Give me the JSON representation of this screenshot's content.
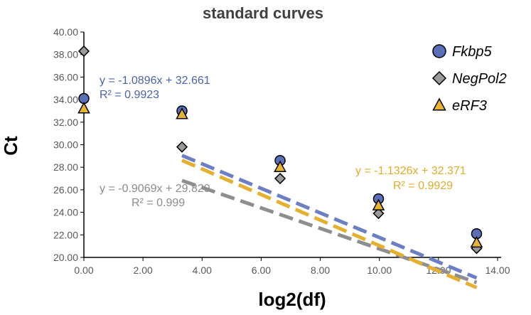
{
  "chart_data": {
    "type": "scatter",
    "title": "standard curves",
    "xlabel": "log2(df)",
    "ylabel": "Ct",
    "xlim": [
      0,
      14
    ],
    "ylim": [
      20,
      40
    ],
    "xticks": [
      "0.00",
      "2.00",
      "4.00",
      "6.00",
      "8.00",
      "10.00",
      "12.00",
      "14.00"
    ],
    "yticks": [
      "20.00",
      "22.00",
      "24.00",
      "26.00",
      "28.00",
      "30.00",
      "32.00",
      "34.00",
      "36.00",
      "38.00",
      "40.00"
    ],
    "legend_position": "top-right",
    "grid": false,
    "series": [
      {
        "name": "Fkbp5",
        "marker": "circle",
        "color": "#5b6fb8",
        "line_color": "#6d7fc4",
        "x": [
          0,
          3.32,
          6.64,
          9.97,
          13.29
        ],
        "y": [
          34.1,
          33.0,
          28.6,
          25.2,
          22.1
        ],
        "trend": {
          "slope": -1.0896,
          "intercept": 32.661,
          "x_range": [
            3.32,
            13.29
          ]
        },
        "equation": "y = -1.0896x + 32.661",
        "r2": "R² = 0.9923",
        "equation_color": "#4a64a8"
      },
      {
        "name": "NegPol2",
        "marker": "diamond",
        "color": "#9a9a9a",
        "line_color": "#8e8e8e",
        "x": [
          0,
          3.32,
          6.64,
          9.97,
          13.29
        ],
        "y": [
          38.3,
          29.8,
          27.0,
          23.9,
          20.8
        ],
        "trend": {
          "slope": -0.9069,
          "intercept": 29.829,
          "x_range": [
            3.32,
            13.29
          ]
        },
        "equation": "y = -0.9069x + 29.829",
        "r2": "R² = 0.999",
        "equation_color": "#8c8c8c"
      },
      {
        "name": "eRF3",
        "marker": "triangle",
        "color": "#e8b432",
        "line_color": "#e5b02e",
        "x": [
          0,
          3.32,
          6.64,
          9.97,
          13.29
        ],
        "y": [
          33.2,
          32.7,
          28.0,
          24.6,
          21.3
        ],
        "trend": {
          "slope": -1.1326,
          "intercept": 32.371,
          "x_range": [
            3.32,
            13.29
          ]
        },
        "equation": "y = -1.1326x + 32.371",
        "r2": "R² = 0.9929",
        "equation_color": "#e0ad2a"
      }
    ]
  }
}
